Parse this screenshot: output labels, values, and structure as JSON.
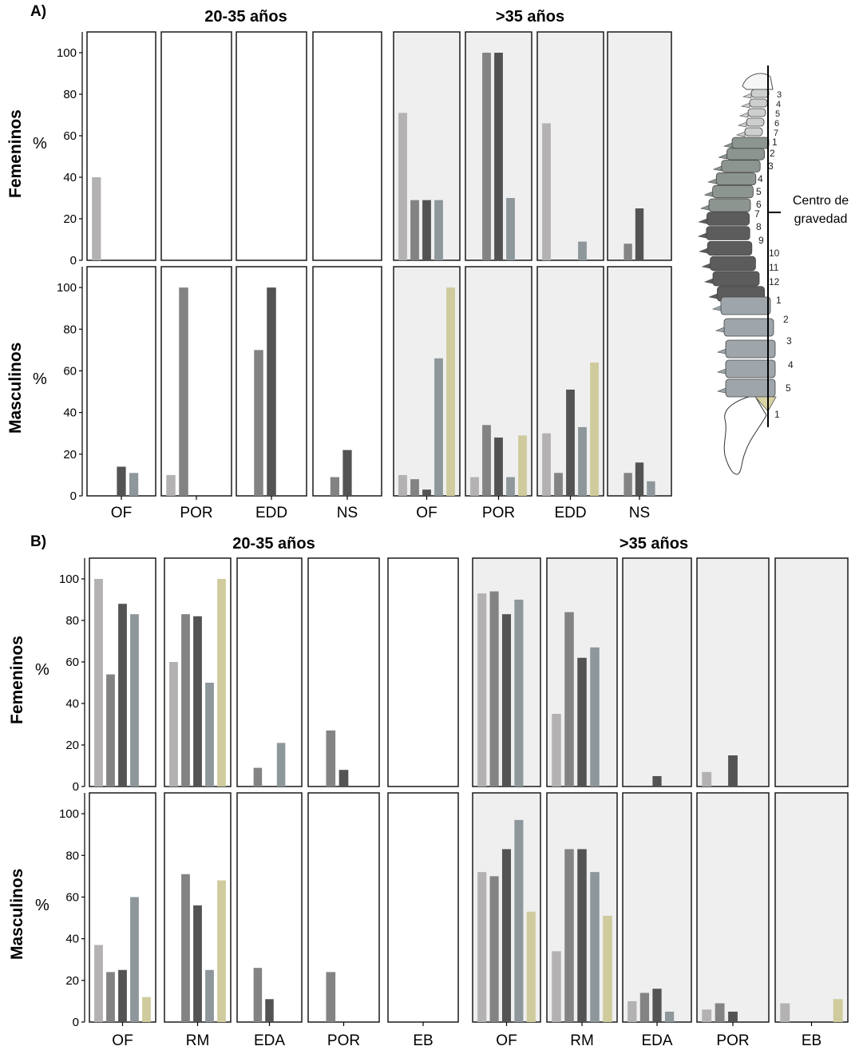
{
  "chart_data": {
    "type": "bar",
    "sections": [
      {
        "label": "A)",
        "groups": [
          "20-35 años",
          ">35 años"
        ],
        "yticks": [
          0,
          20,
          40,
          60,
          80,
          100
        ],
        "ylim": [
          0,
          110
        ],
        "rows": [
          {
            "label": "Femeninos",
            "unit": "%",
            "panels": [
              {
                "category": "OF",
                "values": [
                  40,
                  null,
                  null,
                  null,
                  null
                ]
              },
              {
                "category": "POR",
                "values": [
                  null,
                  null,
                  null,
                  null,
                  null
                ]
              },
              {
                "category": "EDD",
                "values": [
                  null,
                  null,
                  null,
                  null,
                  null
                ]
              },
              {
                "category": "NS",
                "values": [
                  null,
                  null,
                  null,
                  null,
                  null
                ]
              },
              {
                "category": "OF",
                "values": [
                  71,
                  29,
                  29,
                  29,
                  null
                ]
              },
              {
                "category": "POR",
                "values": [
                  null,
                  100,
                  100,
                  30,
                  null
                ]
              },
              {
                "category": "EDD",
                "values": [
                  66,
                  null,
                  null,
                  9,
                  null
                ]
              },
              {
                "category": "NS",
                "values": [
                  null,
                  8,
                  25,
                  null,
                  null
                ]
              }
            ]
          },
          {
            "label": "Masculinos",
            "unit": "%",
            "panels": [
              {
                "category": "OF",
                "values": [
                  null,
                  null,
                  14,
                  11,
                  null
                ]
              },
              {
                "category": "POR",
                "values": [
                  10,
                  100,
                  null,
                  null,
                  null
                ]
              },
              {
                "category": "EDD",
                "values": [
                  null,
                  70,
                  100,
                  null,
                  null
                ]
              },
              {
                "category": "NS",
                "values": [
                  null,
                  9,
                  22,
                  null,
                  null
                ]
              },
              {
                "category": "OF",
                "values": [
                  10,
                  8,
                  3,
                  66,
                  100
                ]
              },
              {
                "category": "POR",
                "values": [
                  9,
                  34,
                  28,
                  9,
                  29
                ]
              },
              {
                "category": "EDD",
                "values": [
                  30,
                  11,
                  51,
                  33,
                  64
                ]
              },
              {
                "category": "NS",
                "values": [
                  null,
                  11,
                  16,
                  7,
                  null
                ]
              }
            ]
          }
        ]
      },
      {
        "label": "B)",
        "groups": [
          "20-35 años",
          ">35 años"
        ],
        "yticks": [
          0,
          20,
          40,
          60,
          80,
          100
        ],
        "ylim": [
          0,
          110
        ],
        "rows": [
          {
            "label": "Femeninos",
            "unit": "%",
            "panels": [
              {
                "category": "OF",
                "values": [
                  100,
                  54,
                  88,
                  83,
                  null
                ]
              },
              {
                "category": "RM",
                "values": [
                  60,
                  83,
                  82,
                  50,
                  100
                ]
              },
              {
                "category": "EDA",
                "values": [
                  null,
                  9,
                  null,
                  21,
                  null
                ]
              },
              {
                "category": "POR",
                "values": [
                  null,
                  27,
                  8,
                  null,
                  null
                ]
              },
              {
                "category": "EB",
                "values": [
                  null,
                  null,
                  null,
                  null,
                  null
                ]
              },
              {
                "category": "OF",
                "values": [
                  93,
                  94,
                  83,
                  90,
                  null
                ]
              },
              {
                "category": "RM",
                "values": [
                  35,
                  84,
                  62,
                  67,
                  null
                ]
              },
              {
                "category": "EDA",
                "values": [
                  null,
                  null,
                  5,
                  null,
                  null
                ]
              },
              {
                "category": "POR",
                "values": [
                  7,
                  null,
                  15,
                  null,
                  null
                ]
              },
              {
                "category": "EB",
                "values": [
                  null,
                  null,
                  null,
                  null,
                  null
                ]
              }
            ]
          },
          {
            "label": "Masculinos",
            "unit": "%",
            "panels": [
              {
                "category": "OF",
                "values": [
                  37,
                  24,
                  25,
                  60,
                  12
                ]
              },
              {
                "category": "RM",
                "values": [
                  null,
                  71,
                  56,
                  25,
                  68
                ]
              },
              {
                "category": "EDA",
                "values": [
                  null,
                  26,
                  11,
                  null,
                  null
                ]
              },
              {
                "category": "POR",
                "values": [
                  null,
                  24,
                  null,
                  null,
                  null
                ]
              },
              {
                "category": "EB",
                "values": [
                  null,
                  null,
                  null,
                  null,
                  null
                ]
              },
              {
                "category": "OF",
                "values": [
                  72,
                  70,
                  83,
                  97,
                  53
                ]
              },
              {
                "category": "RM",
                "values": [
                  34,
                  83,
                  83,
                  72,
                  51
                ]
              },
              {
                "category": "EDA",
                "values": [
                  10,
                  14,
                  16,
                  5,
                  null
                ]
              },
              {
                "category": "POR",
                "values": [
                  6,
                  9,
                  5,
                  null,
                  null
                ]
              },
              {
                "category": "EB",
                "values": [
                  9,
                  null,
                  null,
                  null,
                  11
                ]
              }
            ]
          }
        ]
      }
    ],
    "series_colors": [
      "#b4b1b2",
      "#838383",
      "#535353",
      "#8e979b",
      "#cfcb9d"
    ],
    "older_group_background": "#efefef"
  },
  "spine": {
    "annotation": [
      "Centro de",
      "gravedad"
    ],
    "cervical": [
      "3",
      "4",
      "5",
      "6",
      "7"
    ],
    "thoracic": [
      "1",
      "2",
      "3",
      "4",
      "5",
      "6",
      "7",
      "8",
      "9",
      "10",
      "11",
      "12"
    ],
    "lumbar": [
      "1",
      "2",
      "3",
      "4",
      "5"
    ],
    "sacral": [
      "1"
    ],
    "colors": {
      "cervical": "#cdcfcf",
      "thoracic_upper": "#8c958f",
      "thoracic_lower": "#5c5c5c",
      "lumbar": "#9ea6ab",
      "sacral": "#d8d3a3"
    }
  }
}
